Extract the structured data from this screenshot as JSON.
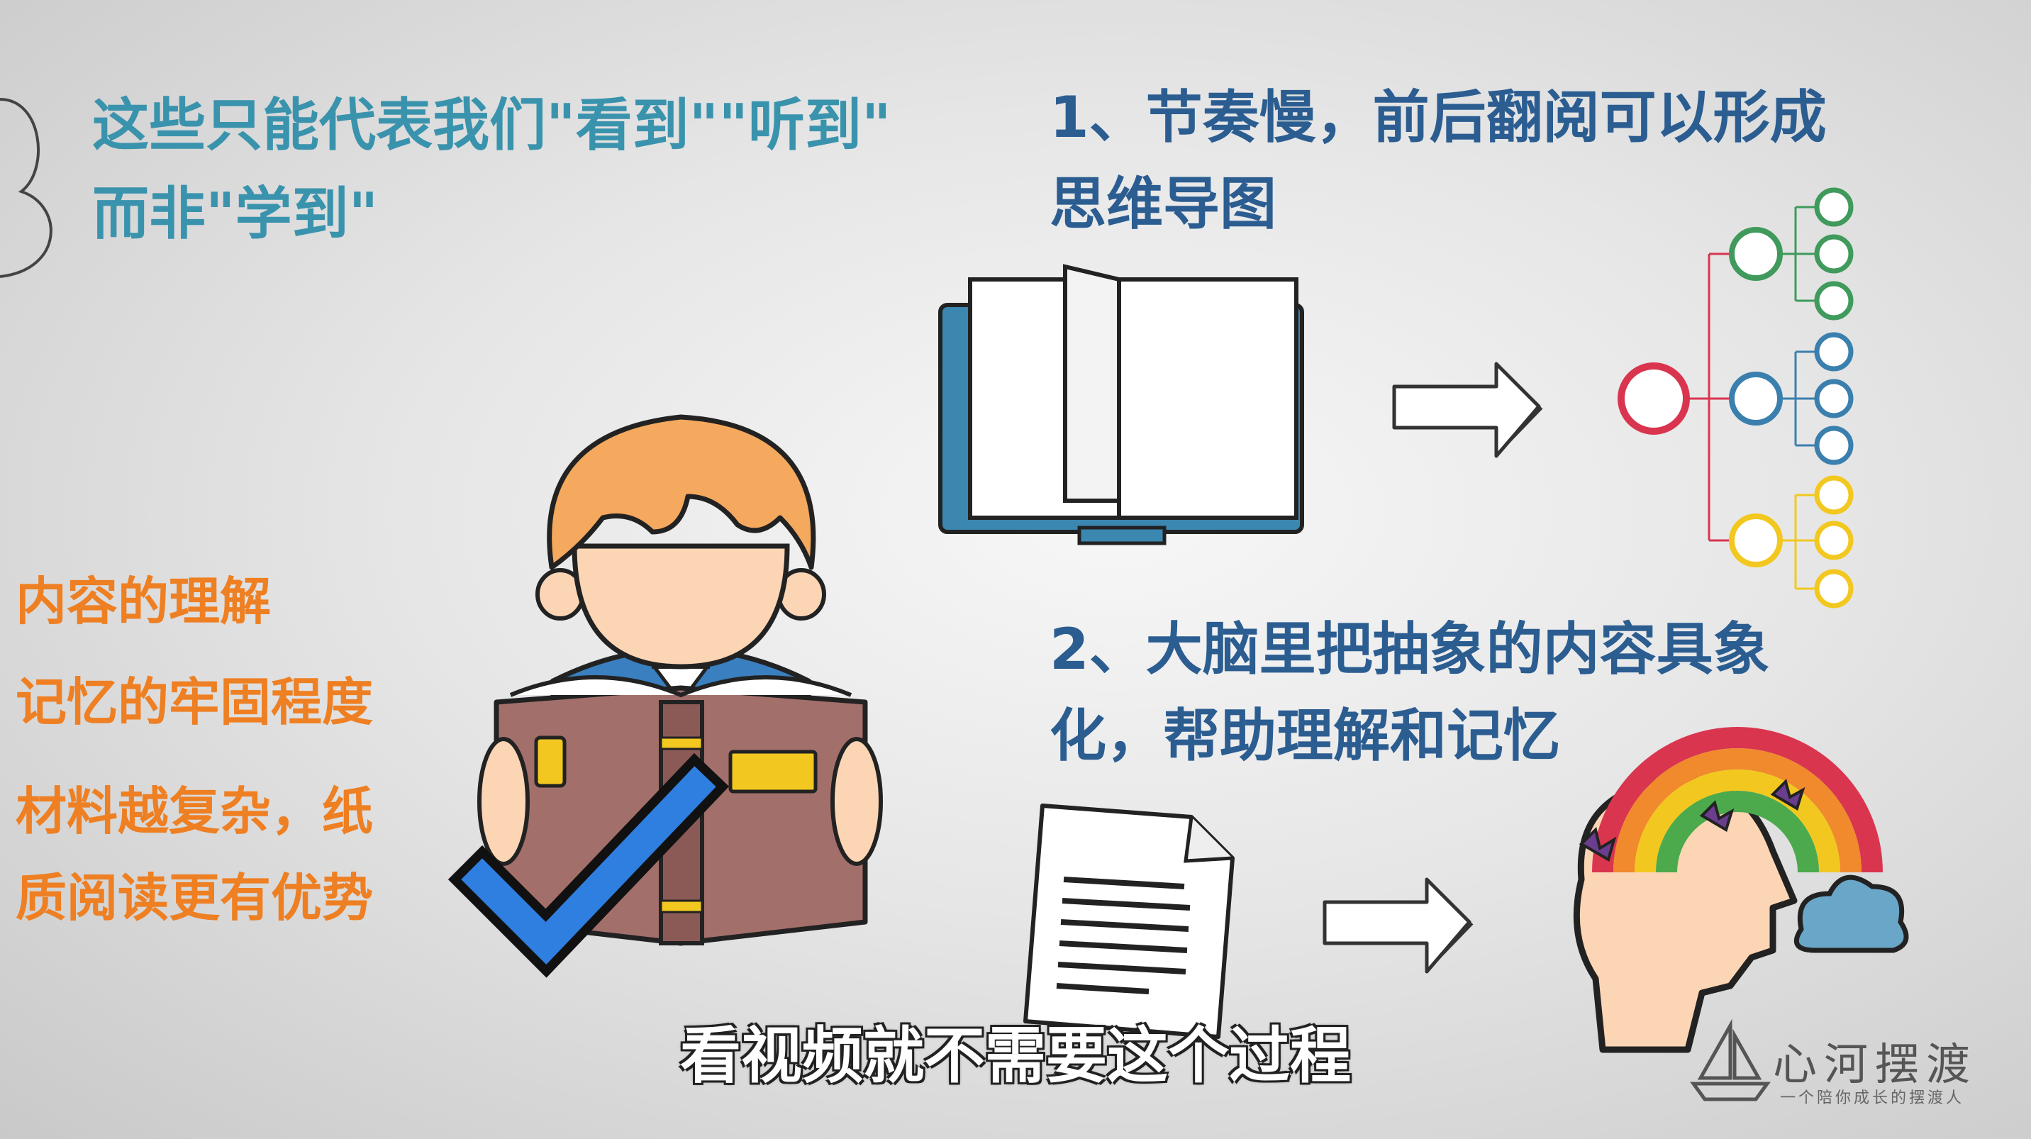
{
  "heading_left": {
    "line1": "这些只能代表我们\"看到\"\"听到\"",
    "line2": "而非\"学到\""
  },
  "point1": {
    "line1": "1、节奏慢，前后翻阅可以形成",
    "line2": "思维导图"
  },
  "point2": {
    "line1": "2、大脑里把抽象的内容具象",
    "line2": "化，帮助理解和记忆"
  },
  "left_list": [
    "内容的理解",
    "记忆的牢固程度",
    "材料越复杂，纸",
    "质阅读更有优势"
  ],
  "subtitle": "看视频就不需要这个过程",
  "logo": {
    "name": "心河摆渡",
    "slogan": "一个陪你成长的摆渡人"
  },
  "colors": {
    "teal_text": "#3a93ad",
    "navy_text": "#2b5d91",
    "orange_text": "#ee7f22",
    "mindmap_root": "#d9354f",
    "mindmap_green": "#3f9a5c",
    "mindmap_blue": "#3a7fae",
    "mindmap_yellow": "#f2c820"
  },
  "icons": [
    "book-open-icon",
    "arrow-right-icon",
    "mind-map-icon",
    "boy-reading-icon",
    "checkmark-icon",
    "document-icon",
    "head-rainbow-icon",
    "boat-logo-icon"
  ]
}
